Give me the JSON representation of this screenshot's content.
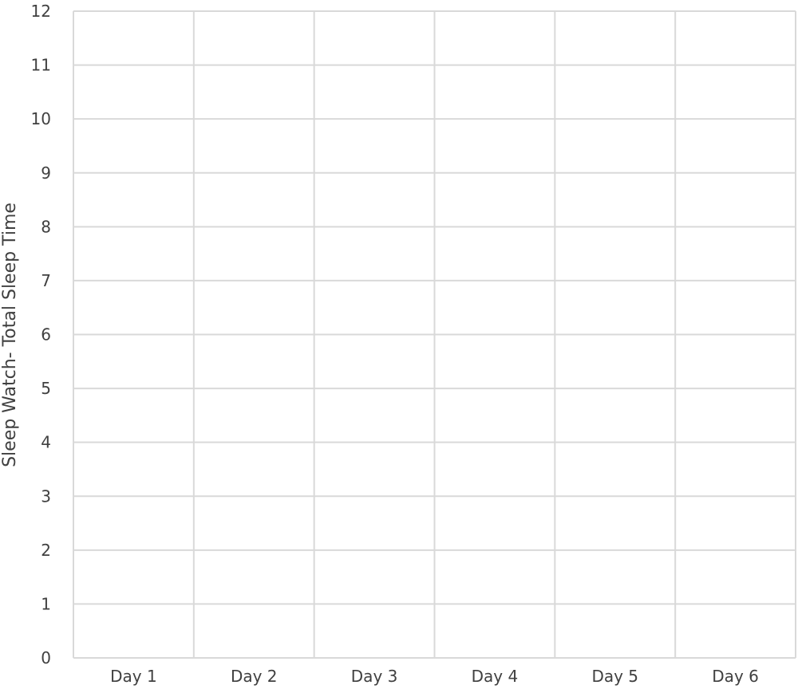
{
  "chart_data": {
    "type": "bar",
    "title": "",
    "xlabel": "",
    "ylabel": "Sleep Watch- Total Sleep Time",
    "categories": [
      "Day 1",
      "Day 2",
      "Day 3",
      "Day 4",
      "Day 5",
      "Day 6"
    ],
    "series": [],
    "ylim": [
      0,
      12
    ],
    "yticks": [
      0,
      1,
      2,
      3,
      4,
      5,
      6,
      7,
      8,
      9,
      10,
      11,
      12
    ],
    "grid": true,
    "legend": "none",
    "colors": {
      "grid": "#d9d9d9",
      "text": "#404040"
    }
  }
}
